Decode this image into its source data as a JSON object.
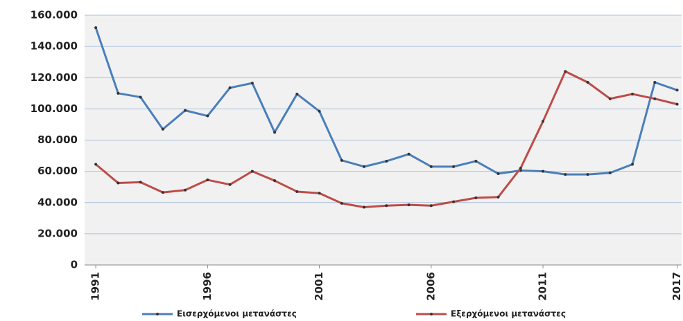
{
  "chart_data": {
    "type": "line",
    "x": [
      1991,
      1992,
      1993,
      1994,
      1995,
      1996,
      1997,
      1998,
      1999,
      2000,
      2001,
      2002,
      2003,
      2004,
      2005,
      2006,
      2007,
      2008,
      2009,
      2010,
      2011,
      2012,
      2013,
      2014,
      2015,
      2016,
      2017
    ],
    "series": [
      {
        "name": "Εισερχόμενοι μετανάστες",
        "color": "#4a7ebb",
        "values": [
          152000,
          110000,
          107500,
          87000,
          99000,
          95500,
          113500,
          116500,
          85000,
          109500,
          98500,
          67000,
          63000,
          66500,
          71000,
          63000,
          63000,
          66500,
          58500,
          60500,
          60000,
          58000,
          58000,
          59000,
          64500,
          117000,
          112000
        ]
      },
      {
        "name": "Εξερχόμενοι μετανάστες",
        "color": "#be4b48",
        "values": [
          64500,
          52500,
          53000,
          46500,
          48000,
          54500,
          51500,
          60000,
          54000,
          47000,
          46000,
          39500,
          37000,
          38000,
          38500,
          38000,
          40500,
          43000,
          43500,
          62000,
          92000,
          124000,
          117000,
          106500,
          109500,
          106500,
          103000
        ]
      }
    ],
    "xlim": [
      1990.5,
      2017.2
    ],
    "xticks": [
      1991,
      1996,
      2001,
      2006,
      2011,
      2017
    ],
    "ylim": [
      0,
      160000
    ],
    "yticks": [
      0,
      {
        "value": 20000,
        "label": "20.000"
      },
      {
        "value": 40000,
        "label": "40.000"
      },
      {
        "value": 60000,
        "label": "60.000"
      },
      {
        "value": 80000,
        "label": "80.000"
      },
      {
        "value": 100000,
        "label": "100.000"
      },
      {
        "value": 120000,
        "label": "120.000"
      },
      {
        "value": 140000,
        "label": "140.000"
      },
      {
        "value": 160000,
        "label": "160.000"
      }
    ],
    "grid": true,
    "legend": "bottom"
  }
}
